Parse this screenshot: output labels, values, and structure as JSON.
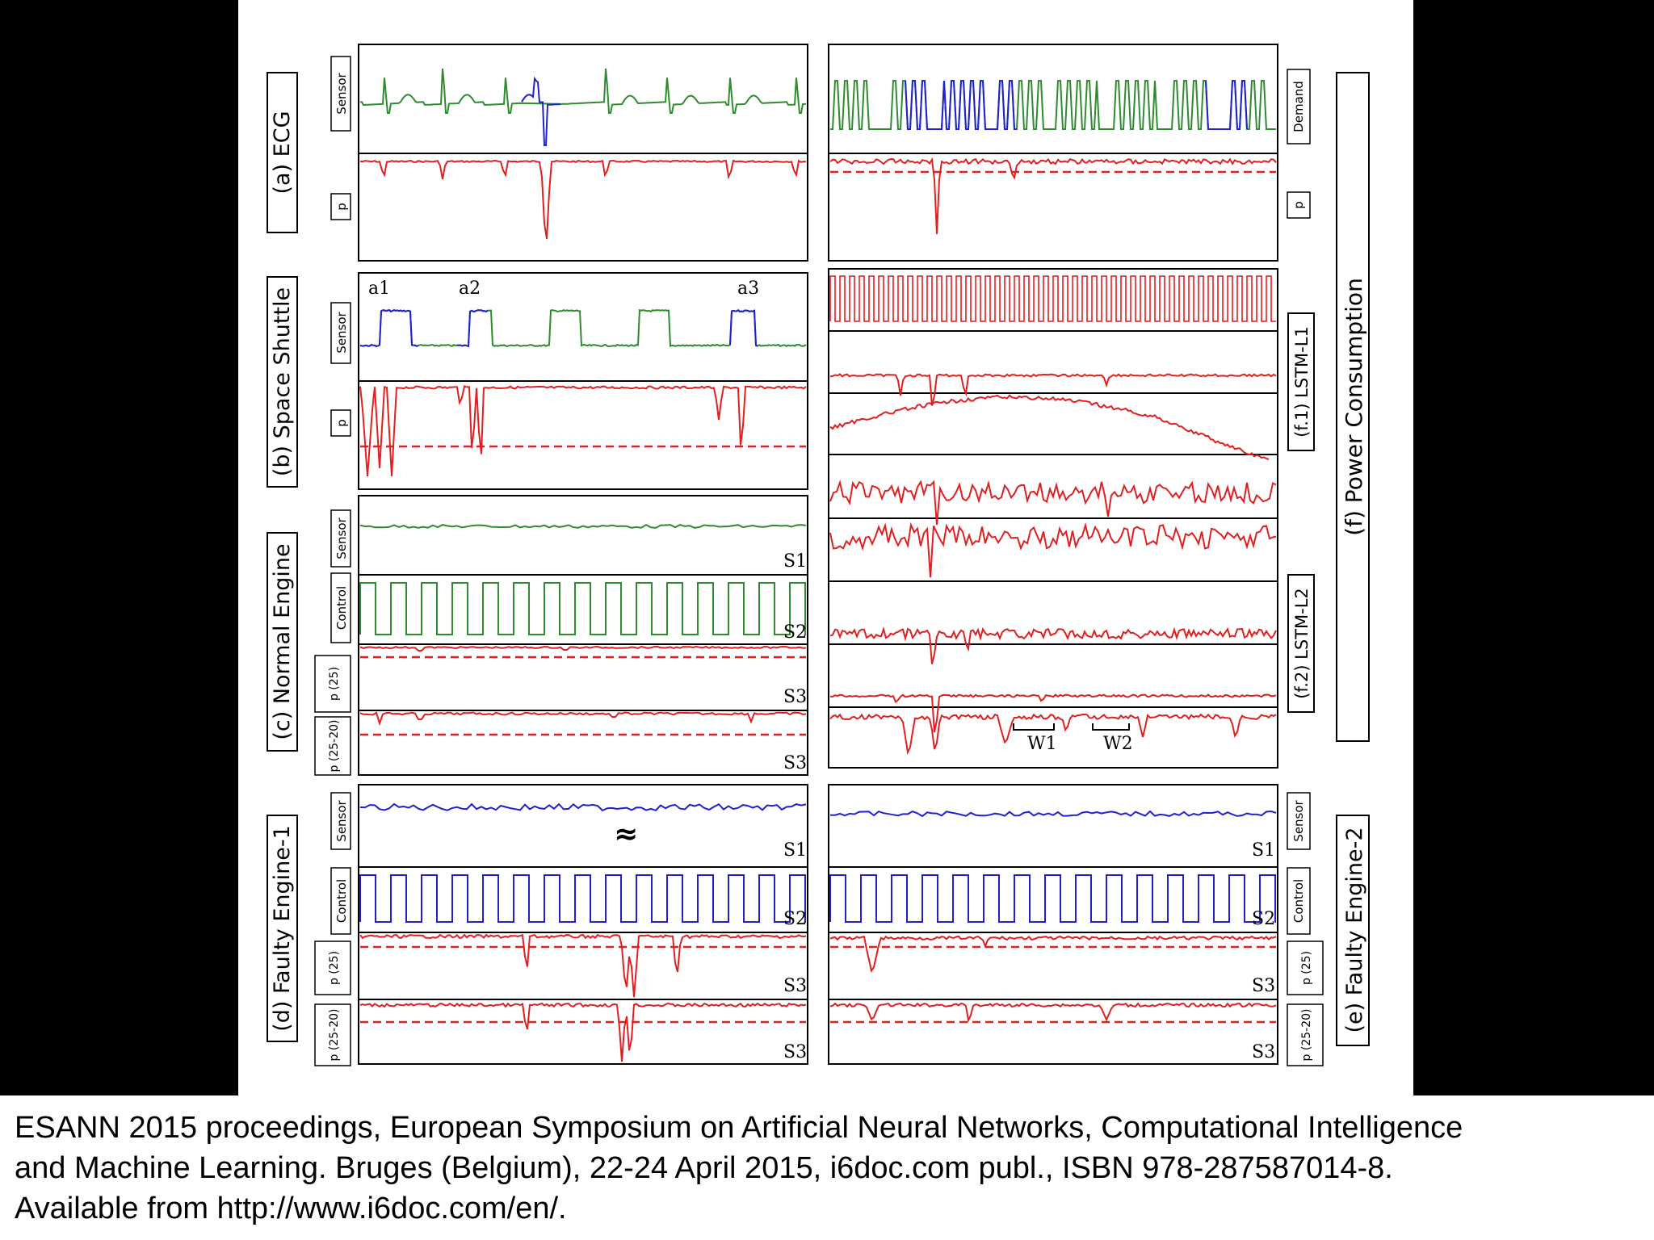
{
  "colors": {
    "background": "#000000",
    "figure_bg": "#ffffff",
    "normal_signal": "#2e8b2e",
    "anomaly_signal": "#2020d0",
    "prediction_signal": "#e02020",
    "frame": "#000000"
  },
  "panels": {
    "ecg": {
      "title": "(a) ECG",
      "rows": [
        "Sensor",
        "p"
      ]
    },
    "shuttle": {
      "title": "(b) Space Shuttle",
      "rows": [
        "Sensor",
        "p"
      ],
      "markers": [
        "a1",
        "a2",
        "a3"
      ]
    },
    "normal_engine": {
      "title": "(c) Normal Engine",
      "rows": [
        "Sensor",
        "Control",
        "p (25)",
        "p (25-20)"
      ],
      "tags": [
        "S1",
        "S2",
        "S3",
        "S3"
      ]
    },
    "faulty_engine_1": {
      "title": "(d) Faulty Engine-1",
      "rows": [
        "Sensor",
        "Control",
        "p (25)",
        "p (25-20)"
      ],
      "tags": [
        "S1",
        "S2",
        "S3",
        "S3"
      ]
    },
    "faulty_engine_2": {
      "title": "(e) Faulty Engine-2",
      "rows": [
        "Sensor",
        "Control",
        "p (25)",
        "p (25-20)"
      ],
      "tags": [
        "S1",
        "S2",
        "S3",
        "S3"
      ]
    },
    "power": {
      "title": "(f) Power Consumption",
      "rows": [
        "Demand",
        "p"
      ],
      "sub_l1": "(f.1) LSTM-L1",
      "sub_l2": "(f.2) LSTM-L2",
      "windows": [
        "W1",
        "W2"
      ]
    }
  },
  "footer": {
    "line1": "ESANN 2015 proceedings, European Symposium on Artificial Neural Networks, Computational  Intelligence",
    "line2": "and Machine Learning.  Bruges (Belgium), 22-24 April 2015, i6doc.com publ., ISBN 978-287587014-8.",
    "line3": "Available from http://www.i6doc.com/en/."
  }
}
